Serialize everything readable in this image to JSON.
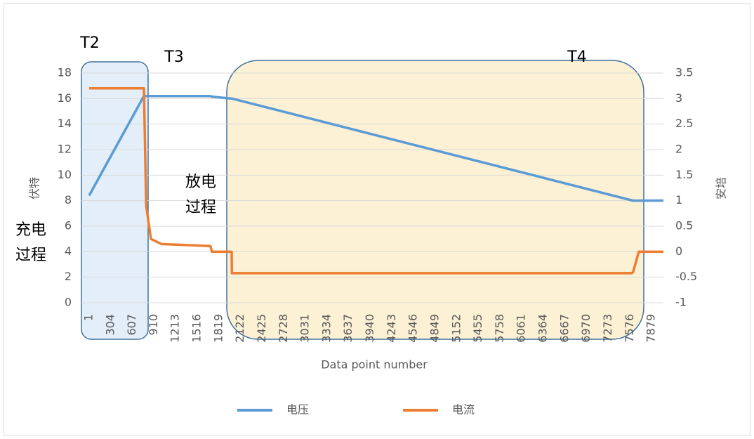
{
  "chart_data": {
    "type": "line",
    "x_label": "Data point number",
    "y_label": "伏特",
    "y2_label": "安培",
    "xlim": [
      1,
      8045
    ],
    "xticks": [
      1,
      304,
      607,
      910,
      1213,
      1516,
      1819,
      2122,
      2425,
      2728,
      3031,
      3334,
      3637,
      3940,
      4243,
      4546,
      4849,
      5152,
      5455,
      5758,
      6061,
      6364,
      6667,
      6970,
      7273,
      7576,
      7879
    ],
    "ylim": [
      0,
      18
    ],
    "yticks": [
      0,
      2,
      4,
      6,
      8,
      10,
      12,
      14,
      16,
      18
    ],
    "y2lim": [
      -1,
      3.5
    ],
    "y2ticks": [
      -1,
      -0.5,
      0,
      0.5,
      1,
      1.5,
      2,
      2.5,
      3,
      3.5
    ],
    "grid": true,
    "legend": "bottom",
    "x": [
      1,
      768,
      800,
      866,
      1014,
      1700,
      1720,
      1997,
      2000,
      7600,
      7620,
      7700,
      8045
    ],
    "series": [
      {
        "name": "电压",
        "color": "#5b9bd5",
        "values": [
          8.4,
          16.2,
          16.2,
          16.2,
          16.2,
          16.2,
          16.15,
          16.0,
          16.0,
          8.03,
          8.0,
          8.0,
          8.0
        ]
      },
      {
        "name": "电流",
        "color": "#ed7d31",
        "axis": "y2",
        "values": [
          3.2,
          3.2,
          0.9,
          0.25,
          0.15,
          0.11,
          0,
          0,
          -0.42,
          -0.42,
          -0.4,
          0,
          0
        ]
      }
    ],
    "annotations": [
      {
        "lines": [
          "T2"
        ]
      },
      {
        "lines": [
          "T3"
        ]
      },
      {
        "lines": [
          "T4"
        ]
      },
      {
        "lines": [
          "充电",
          "过程"
        ]
      },
      {
        "lines": [
          "放电",
          "过程"
        ]
      }
    ]
  }
}
